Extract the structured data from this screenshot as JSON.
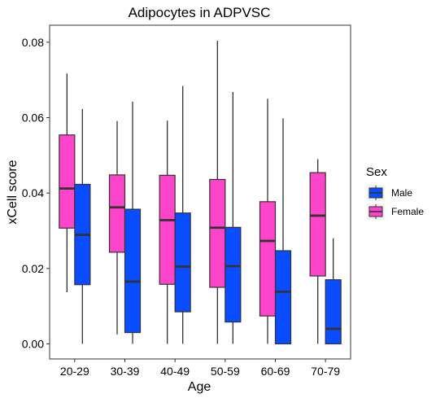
{
  "chart_data": {
    "type": "boxplot",
    "title": "Adipocytes in ADPVSC",
    "xlabel": "Age",
    "ylabel": "xCell score",
    "ylim": [
      -0.004,
      0.0845
    ],
    "yticks": [
      "0.00",
      "0.02",
      "0.04",
      "0.06",
      "0.08"
    ],
    "ytick_values": [
      0,
      0.02,
      0.04,
      0.06,
      0.08
    ],
    "categories": [
      "20-29",
      "30-39",
      "40-49",
      "50-59",
      "60-69",
      "70-79"
    ],
    "legend": {
      "title": "Sex",
      "position": "right"
    },
    "grid": false,
    "series": [
      {
        "name": "Female",
        "color": "#ff44cc",
        "boxes": [
          {
            "min": 0.0137,
            "q1": 0.0307,
            "median": 0.0412,
            "q3": 0.0554,
            "max": 0.0717
          },
          {
            "min": 0.0025,
            "q1": 0.0243,
            "median": 0.0362,
            "q3": 0.0448,
            "max": 0.0591
          },
          {
            "min": 0.0,
            "q1": 0.0158,
            "median": 0.0328,
            "q3": 0.0447,
            "max": 0.0592
          },
          {
            "min": 0.0,
            "q1": 0.015,
            "median": 0.0308,
            "q3": 0.0436,
            "max": 0.0804
          },
          {
            "min": 0.0,
            "q1": 0.0074,
            "median": 0.0273,
            "q3": 0.0377,
            "max": 0.065
          },
          {
            "min": 0.0,
            "q1": 0.018,
            "median": 0.034,
            "q3": 0.0454,
            "max": 0.049
          }
        ]
      },
      {
        "name": "Male",
        "color": "#0a4cff",
        "boxes": [
          {
            "min": 0.0,
            "q1": 0.0157,
            "median": 0.0289,
            "q3": 0.0423,
            "max": 0.0623
          },
          {
            "min": 0.0,
            "q1": 0.003,
            "median": 0.0165,
            "q3": 0.0357,
            "max": 0.0642
          },
          {
            "min": 0.0,
            "q1": 0.0085,
            "median": 0.0205,
            "q3": 0.0347,
            "max": 0.0684
          },
          {
            "min": 0.0,
            "q1": 0.0058,
            "median": 0.0206,
            "q3": 0.0309,
            "max": 0.0668
          },
          {
            "min": 0.0,
            "q1": 0.0,
            "median": 0.0138,
            "q3": 0.0247,
            "max": 0.0598
          },
          {
            "min": 0.0,
            "q1": 0.0,
            "median": 0.004,
            "q3": 0.017,
            "max": 0.028
          }
        ]
      }
    ],
    "legend_order": [
      "Male",
      "Female"
    ]
  }
}
